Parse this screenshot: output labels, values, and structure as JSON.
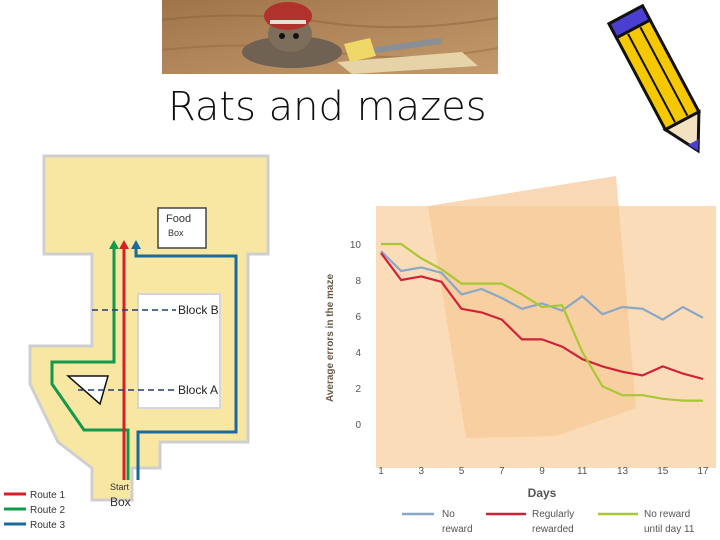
{
  "slide": {
    "title": "Rats and mazes"
  },
  "maze": {
    "food_box_line1": "Food",
    "food_box_line2": "Box",
    "block_b": "Block B",
    "block_a": "Block A",
    "start_line1": "Start",
    "start_line2": "Box",
    "legend": [
      {
        "label": "Route 1",
        "color": "#d81f26"
      },
      {
        "label": "Route 2",
        "color": "#129a4a"
      },
      {
        "label": "Route 3",
        "color": "#1a6a9a"
      }
    ]
  },
  "chart_data": {
    "type": "line",
    "title": "",
    "xlabel": "Days",
    "ylabel": "Average errors in the maze",
    "xlim": [
      1,
      17
    ],
    "ylim": [
      0,
      10
    ],
    "xticks": [
      1,
      3,
      5,
      7,
      9,
      11,
      13,
      15,
      17
    ],
    "yticks": [
      0,
      2,
      4,
      6,
      8,
      10
    ],
    "x": [
      1,
      2,
      3,
      4,
      5,
      6,
      7,
      8,
      9,
      10,
      11,
      12,
      13,
      14,
      15,
      16,
      17
    ],
    "series": [
      {
        "name": "No reward",
        "color": "#8aa7c7",
        "values": [
          9.6,
          8.5,
          8.7,
          8.4,
          7.2,
          7.5,
          7.0,
          6.4,
          6.7,
          6.3,
          7.1,
          6.1,
          6.5,
          6.4,
          5.8,
          6.5,
          5.9
        ]
      },
      {
        "name": "Regularly rewarded",
        "color": "#d0213a",
        "values": [
          9.5,
          8.0,
          8.2,
          7.9,
          6.4,
          6.2,
          5.8,
          4.7,
          4.7,
          4.3,
          3.6,
          3.2,
          2.9,
          2.7,
          3.2,
          2.8,
          2.5
        ]
      },
      {
        "name": "No reward until day 11",
        "color": "#a9c734",
        "values": [
          10.0,
          10.0,
          9.2,
          8.6,
          7.8,
          7.8,
          7.8,
          7.2,
          6.5,
          6.6,
          4.0,
          2.1,
          1.6,
          1.6,
          1.4,
          1.3,
          1.3
        ]
      }
    ],
    "legend": [
      {
        "line1": "No",
        "line2": "reward",
        "color": "#8aa7c7"
      },
      {
        "line1": "Regularly",
        "line2": "rewarded",
        "color": "#d0213a"
      },
      {
        "line1": "No reward",
        "line2": "until day 11",
        "color": "#a9c734"
      }
    ],
    "legend_position": "bottom",
    "grid": false
  }
}
